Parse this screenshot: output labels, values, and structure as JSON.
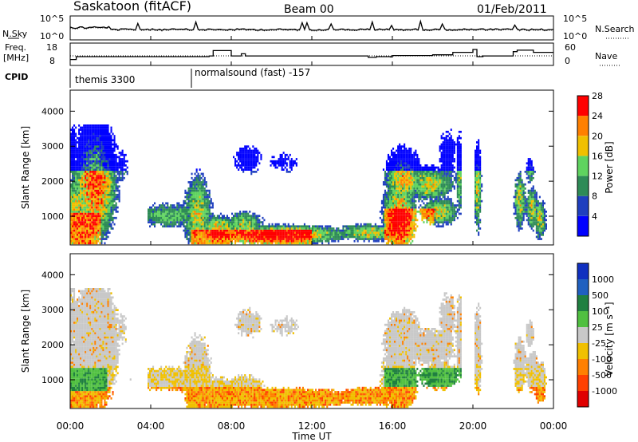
{
  "header": {
    "station": "Saskatoon (fitACF)",
    "beam": "Beam 00",
    "date": "01/Feb/2011"
  },
  "chart_data": [
    {
      "type": "line",
      "panel": "noise",
      "left_label": "N.Sky",
      "right_label": "N.Search",
      "left_ticks": [
        "10^5",
        "10^0"
      ],
      "right_ticks": [
        "10^5",
        "10^0"
      ],
      "series_style": "N.Sky solid, N.Search dotted"
    },
    {
      "type": "line",
      "panel": "frequency",
      "left_label_1": "Freq.",
      "left_label_2": "[MHz]",
      "right_label": "Nave",
      "left_ticks": [
        "18",
        "8"
      ],
      "right_ticks": [
        "60",
        "0"
      ],
      "freq_steps": [
        [
          0,
          11
        ],
        [
          0.3,
          13
        ],
        [
          6.9,
          13.5
        ],
        [
          7.1,
          17.2
        ],
        [
          8.0,
          13.5
        ],
        [
          8.5,
          15
        ],
        [
          8.7,
          13.5
        ],
        [
          11,
          13.5
        ],
        [
          14.8,
          12.5
        ],
        [
          15.2,
          13
        ],
        [
          15.9,
          12.8
        ],
        [
          16,
          13.8
        ],
        [
          18,
          14.3
        ],
        [
          19,
          16
        ],
        [
          20.0,
          18
        ],
        [
          20.2,
          13
        ],
        [
          20.5,
          13.5
        ],
        [
          22,
          16.5
        ],
        [
          22.2,
          17.5
        ],
        [
          23,
          16
        ],
        [
          24,
          16
        ]
      ],
      "nave_level": 25
    },
    {
      "type": "table",
      "panel": "cpid",
      "label": "CPID",
      "segments": [
        {
          "start": 0,
          "name": "themis 3300"
        },
        {
          "start": 6,
          "name": "normalsound (fast) -157"
        }
      ]
    },
    {
      "type": "heatmap",
      "panel": "power",
      "ylabel": "Slant Range [km]",
      "yticks": [
        1000,
        2000,
        3000,
        4000
      ],
      "ylim": [
        180,
        4600
      ],
      "colorbar_label": "Power [dB]",
      "colorbar_ticks": [
        "4",
        "8",
        "12",
        "16",
        "20",
        "24",
        "28"
      ],
      "colors": [
        "#0000ff",
        "#1f3fbf",
        "#2e8b57",
        "#5fd35f",
        "#f0c000",
        "#ff8000",
        "#ff0000"
      ]
    },
    {
      "type": "heatmap",
      "panel": "velocity",
      "ylabel": "Slant Range [km]",
      "yticks": [
        1000,
        2000,
        3000,
        4000
      ],
      "ylim": [
        180,
        4600
      ],
      "colorbar_label": "Velocity [m s⁻¹]",
      "colorbar_ticks": [
        "1000",
        "500",
        "100",
        "25",
        "-25",
        "-100",
        "-500",
        "-1000"
      ],
      "colors": [
        "#1030c0",
        "#2060c0",
        "#208040",
        "#50c040",
        "#c8c8c8",
        "#f0c000",
        "#ff8000",
        "#ff4000",
        "#e00000"
      ]
    }
  ],
  "xaxis": {
    "label": "Time UT",
    "ticks": [
      "00:00",
      "04:00",
      "08:00",
      "12:00",
      "16:00",
      "20:00",
      "00:00"
    ],
    "xlim": [
      0,
      24
    ]
  }
}
